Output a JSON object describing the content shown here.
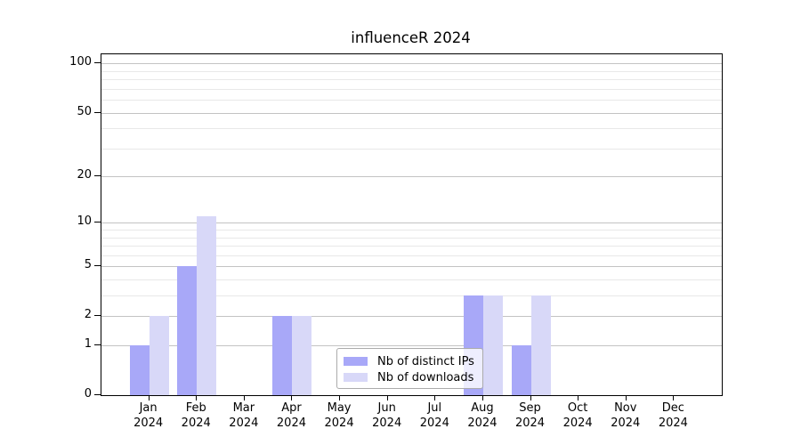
{
  "title": "influenceR 2024",
  "colors": {
    "bar_distinct_ips": "#a8a8f8",
    "bar_downloads": "#d8d8f8",
    "major_grid": "#c3c3c3",
    "minor_grid": "#e8e8e8",
    "axis": "#000000",
    "background": "#ffffff"
  },
  "legend": {
    "items": [
      {
        "label": "Nb of distinct IPs",
        "color": "#a8a8f8"
      },
      {
        "label": "Nb of downloads",
        "color": "#d8d8f8"
      }
    ],
    "position": "bottom-center"
  },
  "chart_data": {
    "type": "bar",
    "title": "influenceR 2024",
    "categories": [
      {
        "month": "Jan",
        "year": "2024"
      },
      {
        "month": "Feb",
        "year": "2024"
      },
      {
        "month": "Mar",
        "year": "2024"
      },
      {
        "month": "Apr",
        "year": "2024"
      },
      {
        "month": "May",
        "year": "2024"
      },
      {
        "month": "Jun",
        "year": "2024"
      },
      {
        "month": "Jul",
        "year": "2024"
      },
      {
        "month": "Aug",
        "year": "2024"
      },
      {
        "month": "Sep",
        "year": "2024"
      },
      {
        "month": "Oct",
        "year": "2024"
      },
      {
        "month": "Nov",
        "year": "2024"
      },
      {
        "month": "Dec",
        "year": "2024"
      }
    ],
    "series": [
      {
        "name": "Nb of distinct IPs",
        "color": "#a8a8f8",
        "values": [
          1,
          5,
          0,
          2,
          0,
          0,
          0,
          3,
          1,
          0,
          0,
          0
        ]
      },
      {
        "name": "Nb of downloads",
        "color": "#d8d8f8",
        "values": [
          2,
          11,
          0,
          2,
          0,
          0,
          0,
          3,
          3,
          0,
          0,
          0
        ]
      }
    ],
    "xlabel": "",
    "ylabel": "",
    "yscale": "log1p",
    "ylim": [
      0,
      114
    ],
    "yticks": [
      0,
      1,
      2,
      5,
      10,
      20,
      50,
      100
    ],
    "minor_gridlines": [
      3,
      4,
      6,
      7,
      8,
      9,
      30,
      40,
      60,
      70,
      80,
      90
    ],
    "grid": true,
    "legend_position": "lower center"
  }
}
